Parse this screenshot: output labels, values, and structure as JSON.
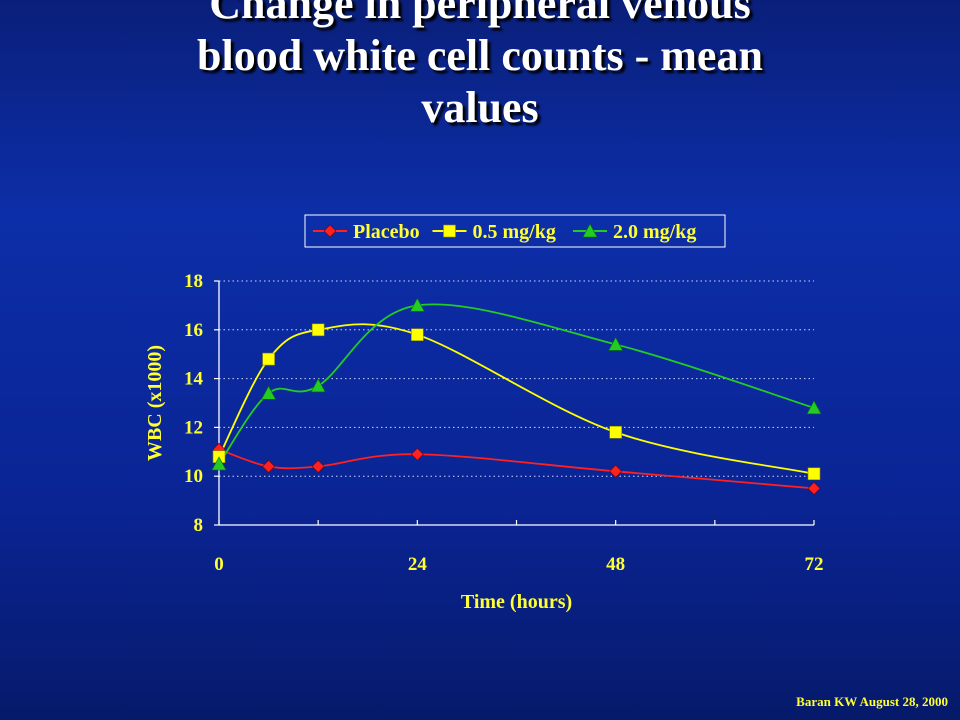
{
  "slide": {
    "title_lines": [
      "Change in peripheral venous",
      "blood white cell counts - mean",
      "values"
    ],
    "footer": "Baran KW August 28, 2000"
  },
  "colors": {
    "text": "#ffff33",
    "axis": "#ffffff",
    "placebo": "#ff2020",
    "dose05": "#ffff00",
    "dose20": "#22cc22"
  },
  "chart_data": {
    "type": "line",
    "xlabel": "Time (hours)",
    "ylabel": "WBC (x1000)",
    "xlim": [
      0,
      72
    ],
    "ylim": [
      8,
      18
    ],
    "xticks": [
      0,
      24,
      48,
      72
    ],
    "yticks": [
      8,
      10,
      12,
      14,
      16,
      18
    ],
    "grid": "horizontal dotted",
    "legend_position": "top",
    "series": [
      {
        "name": "Placebo",
        "marker": "diamond",
        "x": [
          0,
          6,
          12,
          24,
          48,
          72
        ],
        "y": [
          11.1,
          10.4,
          10.4,
          10.9,
          10.2,
          9.5
        ]
      },
      {
        "name": "0.5 mg/kg",
        "marker": "square",
        "x": [
          0,
          6,
          12,
          24,
          48,
          72
        ],
        "y": [
          10.8,
          14.8,
          16.0,
          15.8,
          11.8,
          10.1
        ]
      },
      {
        "name": "2.0 mg/kg",
        "marker": "triangle",
        "x": [
          0,
          6,
          12,
          24,
          48,
          72
        ],
        "y": [
          10.5,
          13.4,
          13.7,
          17.0,
          15.4,
          12.8
        ]
      }
    ]
  }
}
